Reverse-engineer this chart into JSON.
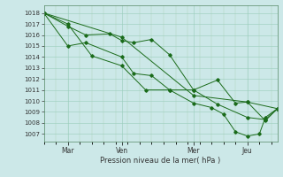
{
  "bg_color": "#cce8e8",
  "grid_major_color": "#99ccbb",
  "grid_minor_color": "#bbddcc",
  "line_color": "#1a6b1a",
  "marker_color": "#1a6b1a",
  "xlabel": "Pression niveau de la mer( hPa )",
  "ylim": [
    1006.3,
    1018.7
  ],
  "yticks": [
    1007,
    1008,
    1009,
    1010,
    1011,
    1012,
    1013,
    1014,
    1015,
    1016,
    1017,
    1018
  ],
  "xtick_labels": [
    "Mar",
    "Ven",
    "Mer",
    "Jeu"
  ],
  "xtick_positions": [
    16,
    52,
    100,
    136
  ],
  "xlim": [
    0,
    156
  ],
  "series1_x": [
    0,
    16,
    32,
    52,
    68,
    84,
    100,
    116,
    136,
    148,
    156
  ],
  "series1_y": [
    1018.0,
    1017.0,
    1014.1,
    1013.2,
    1011.0,
    1011.0,
    1011.0,
    1009.7,
    1008.5,
    1008.3,
    1009.3
  ],
  "series2_x": [
    0,
    16,
    28,
    44,
    52,
    60,
    72,
    84,
    100,
    116,
    128,
    136,
    148,
    156
  ],
  "series2_y": [
    1018.0,
    1016.8,
    1016.0,
    1016.1,
    1015.5,
    1015.3,
    1015.6,
    1014.2,
    1011.0,
    1011.9,
    1009.8,
    1009.9,
    1008.2,
    1009.3
  ],
  "series3_x": [
    0,
    16,
    28,
    52,
    60,
    72,
    84,
    100,
    112,
    120,
    128,
    136,
    144,
    148,
    156
  ],
  "series3_y": [
    1018.0,
    1015.0,
    1015.3,
    1014.0,
    1012.5,
    1012.3,
    1011.0,
    1009.8,
    1009.4,
    1008.8,
    1007.2,
    1006.8,
    1007.0,
    1008.5,
    1009.3
  ],
  "series4_x": [
    0,
    52,
    100,
    136,
    156
  ],
  "series4_y": [
    1018.0,
    1015.8,
    1010.5,
    1009.9,
    1009.3
  ]
}
